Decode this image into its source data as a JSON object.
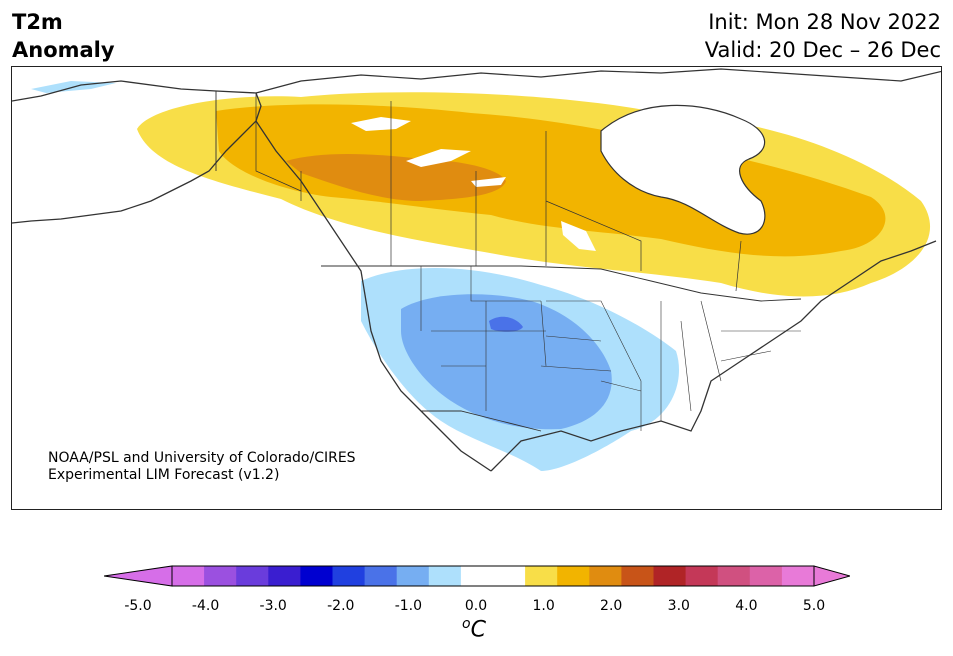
{
  "header": {
    "variable": "T2m",
    "field": "Anomaly",
    "init": "Init: Mon 28 Nov 2022",
    "valid": "Valid: 20 Dec – 26 Dec"
  },
  "credit": {
    "line1": "NOAA/PSL and University of Colorado/CIRES",
    "line2": "Experimental LIM Forecast (v1.2)"
  },
  "colorbar": {
    "tick_labels": [
      "-5.0",
      "-4.0",
      "-3.0",
      "-2.0",
      "-1.0",
      "0.0",
      "1.0",
      "2.0",
      "3.0",
      "4.0",
      "5.0"
    ],
    "unit_sup": "o",
    "unit_main": "C",
    "colors": [
      "#d66ee8",
      "#9b50e0",
      "#6a3cdc",
      "#3a1ed0",
      "#0000d0",
      "#2040e0",
      "#4a72e8",
      "#76aef2",
      "#aee0fc",
      "#ffffff",
      "#ffffff",
      "#f8de48",
      "#f2b400",
      "#e08c10",
      "#c85418",
      "#b02426",
      "#c43858",
      "#d05080",
      "#dc62a8",
      "#e87ad8"
    ],
    "under_color": "#d66ee8",
    "over_color": "#e87ad8"
  },
  "map": {
    "region": "North America",
    "land_color": "#ffffff",
    "coast_color": "#333333",
    "warm_anomaly": "Canada",
    "cold_anomaly": "Western and Central United States"
  }
}
